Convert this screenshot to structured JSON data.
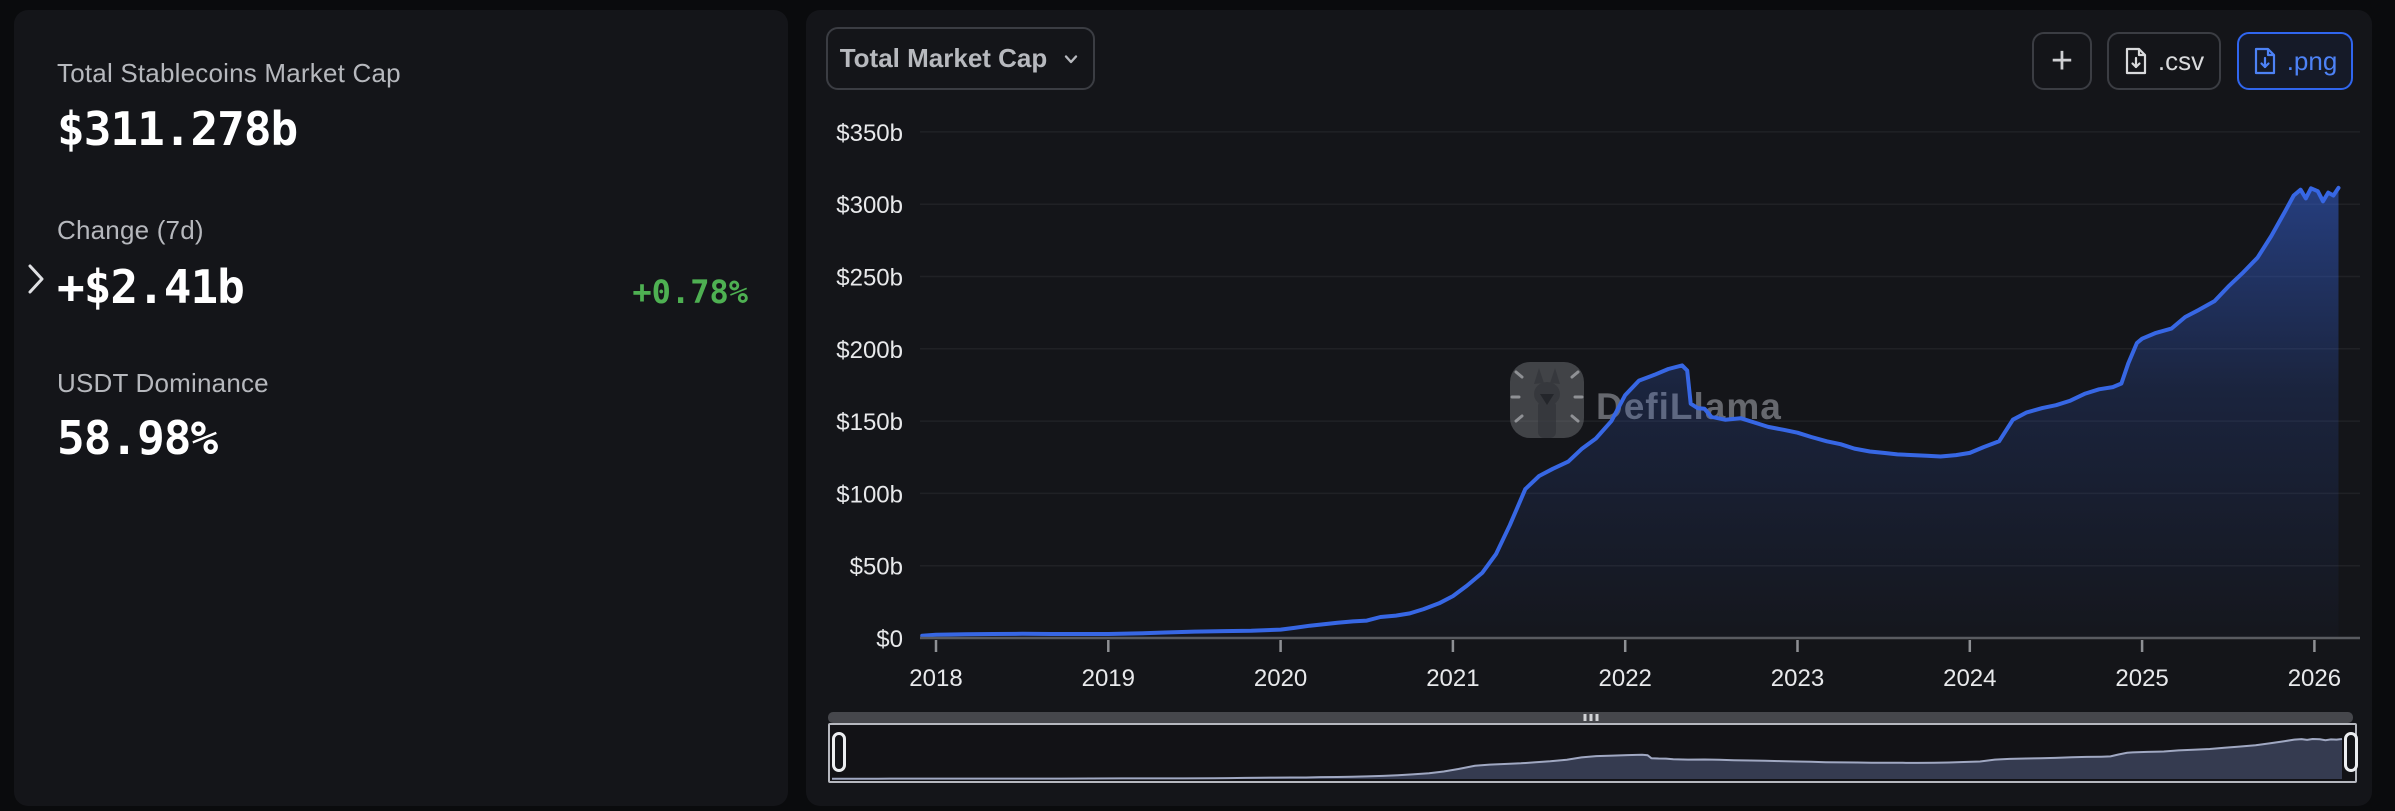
{
  "left_panel": {
    "total_label": "Total Stablecoins Market Cap",
    "total_value": "$311.278b",
    "change_label": "Change (7d)",
    "change_value": "+$2.41b",
    "change_percent": "+0.78%",
    "dominance_label": "USDT Dominance",
    "dominance_value": "58.98%"
  },
  "toolbar": {
    "metric_selector_value": "Total Market Cap",
    "add_button": "+",
    "csv_button": ".csv",
    "png_button": ".png"
  },
  "watermark": "DefiLlama",
  "colors": {
    "green": "#4eb052",
    "line_blue": "#3767e4",
    "accent_blue": "#3066ef",
    "panel_bg": "#141519",
    "page_bg": "#0a0b0d",
    "axis_text": "#e8e9eb",
    "grid": "rgba(255,255,255,0.055)",
    "brush_fill": "#3c435a",
    "brush_stroke": "#a0a8c2"
  },
  "chart_data": {
    "type": "area",
    "title": "Total Market Cap",
    "unit": "USD billions",
    "xlabel": "",
    "ylabel": "",
    "x_ticks": [
      "2018",
      "2019",
      "2020",
      "2021",
      "2022",
      "2023",
      "2024",
      "2025",
      "2026"
    ],
    "y_ticks": [
      "$0",
      "$50b",
      "$100b",
      "$150b",
      "$200b",
      "$250b",
      "$300b",
      "$350b"
    ],
    "ylim": [
      0,
      350
    ],
    "x_range": [
      2017.92,
      2026.2
    ],
    "grid": true,
    "legend": false,
    "x": [
      2017.92,
      2018,
      2018.17,
      2018.33,
      2018.5,
      2018.67,
      2018.83,
      2019,
      2019.17,
      2019.33,
      2019.5,
      2019.67,
      2019.83,
      2020,
      2020.08,
      2020.17,
      2020.25,
      2020.33,
      2020.42,
      2020.5,
      2020.58,
      2020.67,
      2020.75,
      2020.83,
      2020.92,
      2021,
      2021.08,
      2021.17,
      2021.25,
      2021.33,
      2021.42,
      2021.5,
      2021.58,
      2021.67,
      2021.75,
      2021.83,
      2021.92,
      2022,
      2022.08,
      2022.17,
      2022.25,
      2022.33,
      2022.36,
      2022.38,
      2022.42,
      2022.46,
      2022.5,
      2022.58,
      2022.67,
      2022.75,
      2022.83,
      2022.92,
      2023,
      2023.08,
      2023.17,
      2023.25,
      2023.33,
      2023.42,
      2023.5,
      2023.58,
      2023.67,
      2023.75,
      2023.83,
      2023.92,
      2024,
      2024.08,
      2024.17,
      2024.25,
      2024.33,
      2024.42,
      2024.5,
      2024.58,
      2024.67,
      2024.75,
      2024.83,
      2024.88,
      2024.92,
      2024.97,
      2025,
      2025.08,
      2025.17,
      2025.25,
      2025.33,
      2025.42,
      2025.5,
      2025.58,
      2025.67,
      2025.75,
      2025.83,
      2025.88,
      2025.92,
      2025.95,
      2025.98,
      2026.02,
      2026.05,
      2026.08,
      2026.11,
      2026.14
    ],
    "values": [
      1.5,
      2.3,
      2.6,
      2.8,
      2.9,
      2.8,
      2.8,
      2.8,
      3.2,
      3.8,
      4.4,
      4.8,
      5,
      5.8,
      7,
      8.5,
      9.5,
      10.5,
      11.5,
      12,
      14.5,
      15.5,
      17,
      20,
      24,
      29,
      36,
      45,
      58,
      78,
      103,
      112,
      117,
      122,
      131,
      138,
      150,
      168,
      178,
      182,
      186,
      188.5,
      185,
      162,
      159,
      158.5,
      153,
      151,
      152,
      149,
      146,
      144,
      142,
      139,
      136,
      134,
      131,
      129,
      128,
      127,
      126.5,
      126,
      125.5,
      126.5,
      128,
      132,
      136,
      151,
      156,
      159,
      161,
      164,
      169,
      172,
      173.5,
      176,
      190,
      204,
      207,
      211,
      214,
      222,
      227,
      233,
      243,
      252,
      263,
      278,
      295,
      306,
      310,
      304,
      311,
      309,
      302,
      308,
      306,
      311.3
    ]
  }
}
